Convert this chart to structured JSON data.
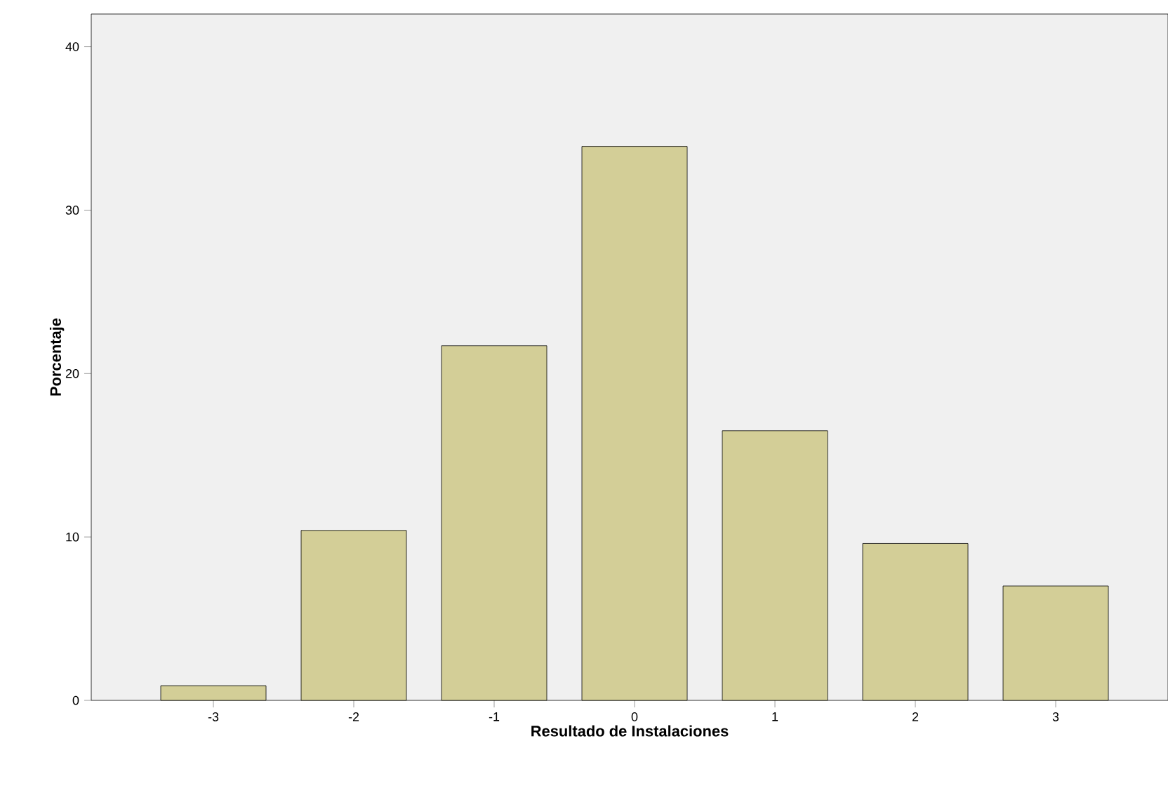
{
  "chart_data": {
    "type": "bar",
    "xlabel": "Resultado de Instalaciones",
    "ylabel": "Porcentaje",
    "categories": [
      "-3",
      "-2",
      "-1",
      "0",
      "1",
      "2",
      "3"
    ],
    "values": [
      0.9,
      10.4,
      21.7,
      33.9,
      16.5,
      9.6,
      7.0
    ],
    "color": "#d3ce97",
    "ylim": [
      0,
      42
    ],
    "yticks": [
      0,
      10,
      20,
      30,
      40
    ]
  }
}
